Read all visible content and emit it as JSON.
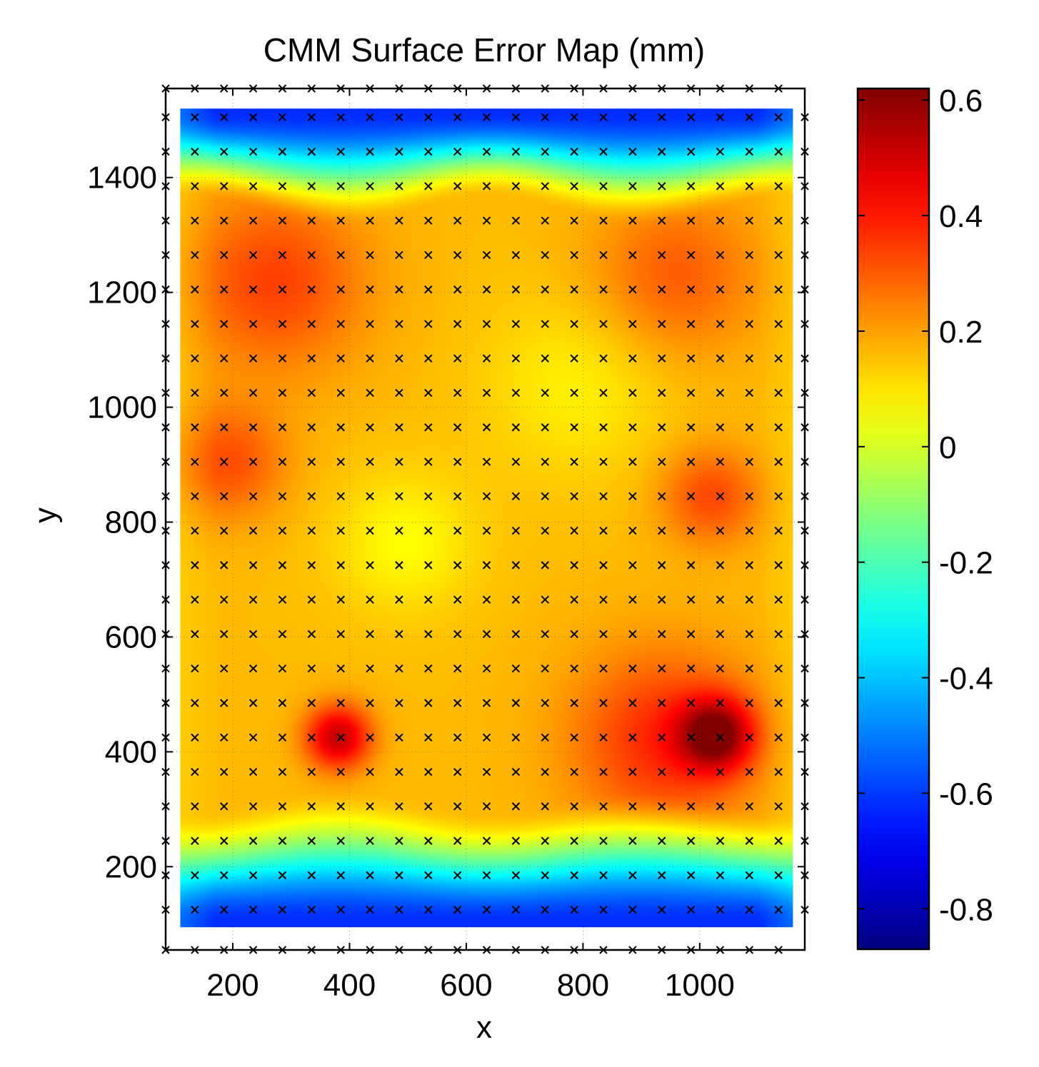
{
  "chart_data": {
    "type": "heatmap",
    "title": "CMM Surface Error Map (mm)",
    "xlabel": "x",
    "ylabel": "y",
    "xlim": [
      85,
      1180
    ],
    "ylim": [
      55,
      1555
    ],
    "x_ticks": [
      200,
      400,
      600,
      800,
      1000
    ],
    "y_ticks": [
      200,
      400,
      600,
      800,
      1000,
      1200,
      1400
    ],
    "x_tick_labels": [
      "200",
      "400",
      "600",
      "800",
      "1000"
    ],
    "y_tick_labels": [
      "200",
      "400",
      "600",
      "800",
      "1000",
      "1200",
      "1400"
    ],
    "grid": true,
    "surface_extent": {
      "x": [
        110,
        1160
      ],
      "y": [
        95,
        1520
      ]
    },
    "colorbar": {
      "range": [
        -0.87,
        0.62
      ],
      "ticks": [
        0.6,
        0.4,
        0.2,
        0,
        -0.2,
        -0.4,
        -0.6,
        -0.8
      ],
      "tick_labels": [
        "0.6",
        "0.4",
        "0.2",
        "0",
        "-0.2",
        "-0.4",
        "-0.6",
        "-0.8"
      ],
      "colormap": "jet"
    },
    "measurement_points": {
      "marker": "x",
      "x_start": 135,
      "x_step": 50,
      "x_count": 21,
      "y_start": 125,
      "y_step": 60,
      "y_count": 24
    },
    "surface_features": [
      {
        "name": "top-left-peak",
        "x": 270,
        "y": 1220,
        "value": 0.34
      },
      {
        "name": "top-right-peak",
        "x": 960,
        "y": 1230,
        "value": 0.3
      },
      {
        "name": "left-mid-peak",
        "x": 190,
        "y": 905,
        "value": 0.32
      },
      {
        "name": "right-mid-peak",
        "x": 1020,
        "y": 845,
        "value": 0.33
      },
      {
        "name": "bottom-left-peak",
        "x": 380,
        "y": 425,
        "value": 0.52
      },
      {
        "name": "bottom-right-peak",
        "x": 1030,
        "y": 430,
        "value": 0.55
      },
      {
        "name": "bottom-right-broad",
        "x": 940,
        "y": 420,
        "value": 0.38
      },
      {
        "name": "center-low",
        "x": 495,
        "y": 765,
        "value": 0.06
      },
      {
        "name": "upper-center-low",
        "x": 790,
        "y": 1040,
        "value": 0.08
      },
      {
        "name": "top-edge-min",
        "y": 1515,
        "value": -0.62
      },
      {
        "name": "bottom-edge-min",
        "y": 100,
        "value": -0.62
      }
    ]
  }
}
